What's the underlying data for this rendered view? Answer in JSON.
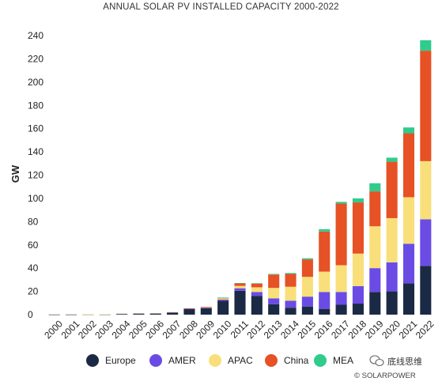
{
  "chart_data": {
    "type": "bar",
    "stacked": true,
    "title": "ANNUAL SOLAR PV INSTALLED CAPACITY 2000-2022",
    "ylabel": "GW",
    "xlabel": "",
    "ylim": [
      0,
      240
    ],
    "yticks": [
      0,
      20,
      40,
      60,
      80,
      100,
      120,
      140,
      160,
      180,
      200,
      220,
      240
    ],
    "grid": false,
    "legend_position": "bottom",
    "categories": [
      "2000",
      "2001",
      "2002",
      "2003",
      "2004",
      "2005",
      "2006",
      "2007",
      "2008",
      "2009",
      "2010",
      "2011",
      "2012",
      "2013",
      "2014",
      "2015",
      "2016",
      "2017",
      "2018",
      "2019",
      "2020",
      "2021",
      "2022"
    ],
    "series": [
      {
        "name": "Europe",
        "color": "#1b2a44",
        "values": [
          0.1,
          0.1,
          0.2,
          0.2,
          0.7,
          0.9,
          1.0,
          1.8,
          4.8,
          5.5,
          12.0,
          20.5,
          16.0,
          9.0,
          6.0,
          7.0,
          5.0,
          8.5,
          9.5,
          19.5,
          20.0,
          27.0,
          42.0
        ]
      },
      {
        "name": "AMER",
        "color": "#6a4ce5",
        "values": [
          0.0,
          0.0,
          0.0,
          0.1,
          0.1,
          0.1,
          0.1,
          0.2,
          0.3,
          0.5,
          1.0,
          2.2,
          3.5,
          5.0,
          6.0,
          8.5,
          14.5,
          11.0,
          15.0,
          20.5,
          25.0,
          34.0,
          40.0
        ]
      },
      {
        "name": "APAC",
        "color": "#f9df7a",
        "values": [
          0.0,
          0.0,
          0.1,
          0.1,
          0.2,
          0.3,
          0.3,
          0.3,
          0.3,
          0.6,
          1.0,
          2.0,
          4.0,
          9.0,
          12.0,
          17.0,
          17.5,
          23.0,
          28.0,
          36.0,
          38.0,
          40.0,
          50.0
        ]
      },
      {
        "name": "China",
        "color": "#e65125",
        "values": [
          0.0,
          0.0,
          0.0,
          0.0,
          0.0,
          0.0,
          0.0,
          0.0,
          0.1,
          0.2,
          0.6,
          2.3,
          3.3,
          11.5,
          11.0,
          15.0,
          34.5,
          53.0,
          44.0,
          30.0,
          48.5,
          55.0,
          95.0
        ]
      },
      {
        "name": "MEA",
        "color": "#2fcc8d",
        "values": [
          0.0,
          0.0,
          0.0,
          0.0,
          0.0,
          0.0,
          0.0,
          0.0,
          0.0,
          0.0,
          0.1,
          0.2,
          0.2,
          0.5,
          0.8,
          1.0,
          2.0,
          1.5,
          3.5,
          7.0,
          3.5,
          5.0,
          9.0
        ]
      }
    ]
  },
  "watermark": {
    "wechat_text": "底线思维",
    "source_text": "© SOLARPOWER"
  }
}
